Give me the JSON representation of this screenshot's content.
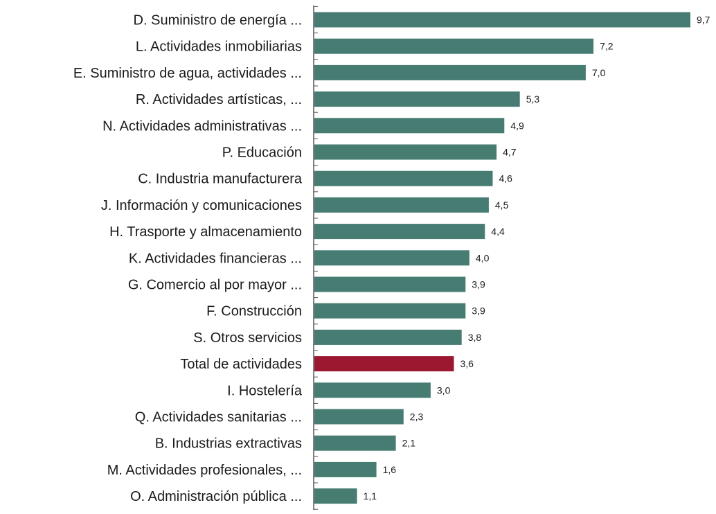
{
  "chart_data": {
    "type": "bar",
    "orientation": "horizontal",
    "title": "",
    "xlabel": "",
    "ylabel": "",
    "xlim": [
      0,
      9.7
    ],
    "grid": false,
    "legend": "none",
    "categories": [
      "D. Suministro de energía ...",
      "L. Actividades inmobiliarias",
      "E. Suministro de agua, actividades ...",
      "R. Actividades artísticas, ...",
      "N. Actividades administrativas ...",
      "P. Educación",
      "C. Industria manufacturera",
      "J. Información y comunicaciones",
      "H. Trasporte y almacenamiento",
      "K. Actividades financieras ...",
      "G. Comercio al por mayor ...",
      "F. Construcción",
      "S. Otros servicios",
      "Total de actividades",
      "I. Hostelería",
      "Q. Actividades sanitarias ...",
      "B. Industrias extractivas",
      "M. Actividades profesionales, ...",
      "O. Administración pública ..."
    ],
    "values": [
      9.7,
      7.2,
      7.0,
      5.3,
      4.9,
      4.7,
      4.6,
      4.5,
      4.4,
      4.0,
      3.9,
      3.9,
      3.8,
      3.6,
      3.0,
      2.3,
      2.1,
      1.6,
      1.1
    ],
    "value_labels": [
      "9,7",
      "7,2",
      "7,0",
      "5,3",
      "4,9",
      "4,7",
      "4,6",
      "4,5",
      "4,4",
      "4,0",
      "3,9",
      "3,9",
      "3,8",
      "3,6",
      "3,0",
      "2,3",
      "2,1",
      "1,6",
      "1,1"
    ],
    "highlight_category": "Total de actividades",
    "colors": {
      "bar": "#467c72",
      "highlight": "#9b1830",
      "axis": "#555555",
      "text": "#1a1a1a"
    }
  }
}
